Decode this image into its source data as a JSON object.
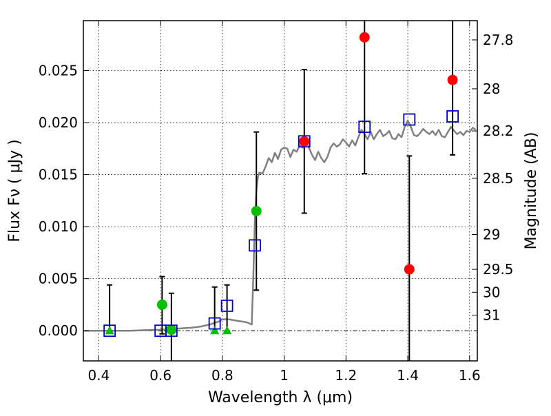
{
  "chart_data": {
    "type": "scatter",
    "xlabel": "Wavelength  λ (μm)",
    "ylabel": "Flux  Fν  ( μJy )",
    "ylabel2": "Magnitude (AB)",
    "xlim": [
      0.35,
      1.625
    ],
    "ylim": [
      -0.0029,
      0.0298
    ],
    "grid": true,
    "x_ticks": [
      0.4,
      0.6,
      0.8,
      1.0,
      1.2,
      1.4,
      1.6
    ],
    "x_tick_labels": [
      "0.4",
      "0.6",
      "0.8",
      "1",
      "1.2",
      "1.4",
      "1.6"
    ],
    "y_ticks": [
      0.0,
      0.005,
      0.01,
      0.015,
      0.02,
      0.025
    ],
    "y_tick_labels": [
      "0.000",
      "0.005",
      "0.010",
      "0.015",
      "0.020",
      "0.025"
    ],
    "mag_ticks": [
      {
        "flux": 0.02795,
        "label": "27.8"
      },
      {
        "flux": 0.02325,
        "label": "28"
      },
      {
        "flux": 0.0192,
        "label": "28.2"
      },
      {
        "flux": 0.01465,
        "label": "28.5"
      },
      {
        "flux": 0.00925,
        "label": "29"
      },
      {
        "flux": 0.0059,
        "label": "29.5"
      },
      {
        "flux": 0.0037,
        "label": "30"
      },
      {
        "flux": 0.0015,
        "label": "31"
      }
    ],
    "series": [
      {
        "marker": "circle",
        "color": "#ff0000",
        "points": [
          {
            "x": 1.065,
            "y": 0.0182,
            "yerr_low": 0.0113,
            "yerr_high": 0.0251
          },
          {
            "x": 1.26,
            "y": 0.0282,
            "yerr_low": 0.0151,
            "yerr_high": 0.0298
          },
          {
            "x": 1.405,
            "y": 0.0059,
            "yerr_low": -0.0029,
            "yerr_high": 0.0168
          },
          {
            "x": 1.545,
            "y": 0.0241,
            "yerr_low": 0.0169,
            "yerr_high": 0.0298
          }
        ]
      },
      {
        "marker": "circle",
        "color": "#00c000",
        "points": [
          {
            "x": 0.605,
            "y": 0.0025,
            "yerr_low": -0.0003,
            "yerr_high": 0.0052
          },
          {
            "x": 0.635,
            "y": 0.0001,
            "yerr_low": -0.0029,
            "yerr_high": 0.0036
          },
          {
            "x": 0.91,
            "y": 0.0115,
            "yerr_low": 0.0039,
            "yerr_high": 0.0191
          }
        ]
      },
      {
        "marker": "triangle",
        "color": "#00c000",
        "points": [
          {
            "x": 0.435,
            "y": 0.0,
            "yerr_low": -0.0001,
            "yerr_high": 0.0044
          },
          {
            "x": 0.775,
            "y": 0.0,
            "yerr_low": -0.0001,
            "yerr_high": 0.0042
          },
          {
            "x": 0.815,
            "y": 0.0,
            "yerr_low": -0.0001,
            "yerr_high": 0.0044
          }
        ]
      },
      {
        "marker": "square-open",
        "color": "#0000cc",
        "points": [
          {
            "x": 0.435,
            "y": 0.0
          },
          {
            "x": 0.6,
            "y": 0.0
          },
          {
            "x": 0.635,
            "y": 0.0
          },
          {
            "x": 0.775,
            "y": 0.0007
          },
          {
            "x": 0.815,
            "y": 0.0024
          },
          {
            "x": 0.905,
            "y": 0.0082
          },
          {
            "x": 1.065,
            "y": 0.0182
          },
          {
            "x": 1.26,
            "y": 0.0196
          },
          {
            "x": 1.405,
            "y": 0.0203
          },
          {
            "x": 1.545,
            "y": 0.0206
          }
        ]
      },
      {
        "marker": "line",
        "color": "#808080",
        "points": [
          [
            0.35,
            0.0
          ],
          [
            0.45,
            0.0
          ],
          [
            0.5,
            0.0
          ],
          [
            0.55,
            5e-05
          ],
          [
            0.6,
            0.0001
          ],
          [
            0.65,
            0.0002
          ],
          [
            0.7,
            0.0003
          ],
          [
            0.73,
            0.0004
          ],
          [
            0.76,
            0.0006
          ],
          [
            0.79,
            0.0009
          ],
          [
            0.8,
            0.0011
          ],
          [
            0.82,
            0.0011
          ],
          [
            0.84,
            0.001
          ],
          [
            0.86,
            0.0009
          ],
          [
            0.88,
            0.0008
          ],
          [
            0.895,
            0.0006
          ],
          [
            0.9,
            0.005
          ],
          [
            0.905,
            0.0105
          ],
          [
            0.91,
            0.0135
          ],
          [
            0.915,
            0.0148
          ],
          [
            0.92,
            0.0152
          ],
          [
            0.93,
            0.0151
          ],
          [
            0.94,
            0.0158
          ],
          [
            0.95,
            0.0166
          ],
          [
            0.96,
            0.0162
          ],
          [
            0.97,
            0.0171
          ],
          [
            0.98,
            0.0165
          ],
          [
            0.99,
            0.0174
          ],
          [
            1.0,
            0.0176
          ],
          [
            1.01,
            0.0175
          ],
          [
            1.02,
            0.0167
          ],
          [
            1.03,
            0.0174
          ],
          [
            1.04,
            0.0172
          ],
          [
            1.05,
            0.0178
          ],
          [
            1.06,
            0.0176
          ],
          [
            1.07,
            0.0182
          ],
          [
            1.08,
            0.0176
          ],
          [
            1.09,
            0.0169
          ],
          [
            1.1,
            0.0164
          ],
          [
            1.11,
            0.0172
          ],
          [
            1.12,
            0.0166
          ],
          [
            1.13,
            0.0162
          ],
          [
            1.14,
            0.0167
          ],
          [
            1.15,
            0.0176
          ],
          [
            1.16,
            0.018
          ],
          [
            1.17,
            0.0177
          ],
          [
            1.18,
            0.0179
          ],
          [
            1.19,
            0.0184
          ],
          [
            1.2,
            0.0181
          ],
          [
            1.21,
            0.0177
          ],
          [
            1.22,
            0.0183
          ],
          [
            1.23,
            0.0178
          ],
          [
            1.24,
            0.0186
          ],
          [
            1.25,
            0.0193
          ],
          [
            1.26,
            0.0189
          ],
          [
            1.27,
            0.0184
          ],
          [
            1.28,
            0.0191
          ],
          [
            1.29,
            0.0184
          ],
          [
            1.3,
            0.0189
          ],
          [
            1.31,
            0.0193
          ],
          [
            1.32,
            0.0187
          ],
          [
            1.33,
            0.0189
          ],
          [
            1.34,
            0.0192
          ],
          [
            1.35,
            0.0185
          ],
          [
            1.36,
            0.0184
          ],
          [
            1.37,
            0.0189
          ],
          [
            1.38,
            0.0186
          ],
          [
            1.39,
            0.0196
          ],
          [
            1.4,
            0.0202
          ],
          [
            1.41,
            0.0196
          ],
          [
            1.42,
            0.0188
          ],
          [
            1.43,
            0.0187
          ],
          [
            1.44,
            0.019
          ],
          [
            1.45,
            0.0194
          ],
          [
            1.46,
            0.0191
          ],
          [
            1.47,
            0.0189
          ],
          [
            1.48,
            0.0192
          ],
          [
            1.49,
            0.0188
          ],
          [
            1.5,
            0.0193
          ],
          [
            1.51,
            0.0187
          ],
          [
            1.52,
            0.0186
          ],
          [
            1.53,
            0.0191
          ],
          [
            1.54,
            0.0196
          ],
          [
            1.55,
            0.0192
          ],
          [
            1.56,
            0.0189
          ],
          [
            1.57,
            0.0191
          ],
          [
            1.58,
            0.0188
          ],
          [
            1.59,
            0.0192
          ],
          [
            1.6,
            0.0191
          ],
          [
            1.61,
            0.0195
          ],
          [
            1.62,
            0.0193
          ]
        ]
      }
    ]
  }
}
